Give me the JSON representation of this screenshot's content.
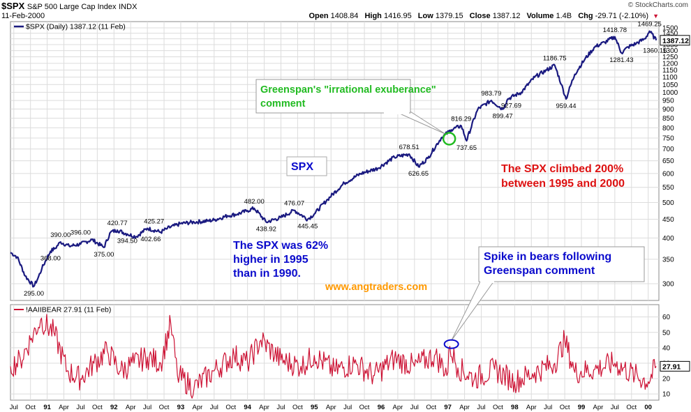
{
  "header": {
    "symbol": "$SPX",
    "name": "S&P 500 Large Cap Index",
    "exchange": "INDX",
    "date": "11-Feb-2000",
    "brand": "© StockCharts.com",
    "ohlc": [
      {
        "label": "Open",
        "value": "1408.84"
      },
      {
        "label": "High",
        "value": "1416.95"
      },
      {
        "label": "Low",
        "value": "1379.15"
      },
      {
        "label": "Close",
        "value": "1387.12"
      },
      {
        "label": "Volume",
        "value": "1.4B"
      },
      {
        "label": "Chg",
        "value": "-29.71 (-2.10%)"
      }
    ],
    "chg_arrow": "▼"
  },
  "colors": {
    "price_line": "#1a1a80",
    "bear_line": "#cc1133",
    "green": "#22bb22",
    "red": "#dd1111",
    "blue": "#0a0acc",
    "orange": "#ff9900",
    "grid": "#dcdcdc"
  },
  "chart_data": [
    {
      "type": "line",
      "legend": "$SPX (Daily) 1387.12 (11 Feb)",
      "last_value_label": "1387.12",
      "scale": "log",
      "ylim": [
        270,
        1560
      ],
      "yticks": [
        300,
        350,
        400,
        450,
        500,
        550,
        600,
        650,
        700,
        750,
        800,
        850,
        900,
        950,
        1000,
        1050,
        1100,
        1150,
        1200,
        1250,
        1300,
        1350,
        1400,
        1450,
        1500
      ],
      "xlim": [
        1990.45,
        2000.16
      ],
      "x": [
        1990.45,
        1990.55,
        1990.67,
        1990.8,
        1990.86,
        1990.92,
        1991.05,
        1991.12,
        1991.2,
        1991.33,
        1991.5,
        1991.67,
        1991.85,
        1991.95,
        1992.05,
        1992.2,
        1992.33,
        1992.5,
        1992.7,
        1992.8,
        1993.0,
        1993.2,
        1993.4,
        1993.5,
        1993.7,
        1993.85,
        1994.0,
        1994.1,
        1994.28,
        1994.5,
        1994.7,
        1994.9,
        1995.0,
        1995.2,
        1995.45,
        1995.7,
        1995.95,
        1996.2,
        1996.42,
        1996.56,
        1996.7,
        1996.9,
        1997.05,
        1997.2,
        1997.28,
        1997.45,
        1997.65,
        1997.82,
        1997.9,
        1998.1,
        1998.3,
        1998.48,
        1998.6,
        1998.7,
        1998.77,
        1998.9,
        1999.05,
        1999.2,
        1999.35,
        1999.5,
        1999.6,
        1999.7,
        1999.82,
        1999.95,
        2000.02,
        2000.12
      ],
      "values": [
        365,
        355,
        315,
        295,
        310,
        330,
        368,
        375,
        390,
        380,
        385,
        396,
        377,
        415,
        420,
        410,
        403,
        425,
        415,
        425,
        438,
        442,
        445,
        448,
        460,
        465,
        475,
        482,
        442,
        455,
        476,
        450,
        465,
        510,
        565,
        600,
        620,
        665,
        678,
        626,
        660,
        750,
        790,
        810,
        737,
        900,
        950,
        899,
        960,
        1000,
        1100,
        1150,
        1186,
        1050,
        959,
        1120,
        1230,
        1330,
        1370,
        1418,
        1281,
        1330,
        1360,
        1400,
        1469,
        1387
      ],
      "annotations": [
        {
          "x": 1990.8,
          "y": 295,
          "text": "295.00",
          "pos": "below"
        },
        {
          "x": 1991.05,
          "y": 368,
          "text": "368.00",
          "pos": "below"
        },
        {
          "x": 1991.2,
          "y": 390,
          "text": "390.00",
          "pos": "above"
        },
        {
          "x": 1991.5,
          "y": 396,
          "text": "396.00",
          "pos": "above"
        },
        {
          "x": 1991.85,
          "y": 377,
          "text": "375.00",
          "pos": "below"
        },
        {
          "x": 1992.05,
          "y": 420,
          "text": "420.77",
          "pos": "above"
        },
        {
          "x": 1992.2,
          "y": 410,
          "text": "394.50",
          "pos": "below"
        },
        {
          "x": 1992.6,
          "y": 425,
          "text": "425.27",
          "pos": "above"
        },
        {
          "x": 1992.55,
          "y": 415,
          "text": "402.66",
          "pos": "below"
        },
        {
          "x": 1994.1,
          "y": 482,
          "text": "482.00",
          "pos": "above"
        },
        {
          "x": 1994.28,
          "y": 442,
          "text": "438.92",
          "pos": "below"
        },
        {
          "x": 1994.7,
          "y": 476,
          "text": "476.07",
          "pos": "above"
        },
        {
          "x": 1994.9,
          "y": 450,
          "text": "445.45",
          "pos": "below"
        },
        {
          "x": 1996.42,
          "y": 678,
          "text": "678.51",
          "pos": "above"
        },
        {
          "x": 1996.56,
          "y": 626,
          "text": "626.65",
          "pos": "below"
        },
        {
          "x": 1997.2,
          "y": 810,
          "text": "816.29",
          "pos": "above"
        },
        {
          "x": 1997.28,
          "y": 737,
          "text": "737.65",
          "pos": "below"
        },
        {
          "x": 1997.65,
          "y": 950,
          "text": "983.79",
          "pos": "above"
        },
        {
          "x": 1997.82,
          "y": 899,
          "text": "899.47",
          "pos": "below"
        },
        {
          "x": 1997.95,
          "y": 960,
          "text": "927.69",
          "pos": "below"
        },
        {
          "x": 1998.6,
          "y": 1186,
          "text": "1186.75",
          "pos": "above"
        },
        {
          "x": 1998.77,
          "y": 959,
          "text": "959.44",
          "pos": "below"
        },
        {
          "x": 1999.5,
          "y": 1418,
          "text": "1418.78",
          "pos": "above"
        },
        {
          "x": 1999.6,
          "y": 1281,
          "text": "1281.43",
          "pos": "below"
        },
        {
          "x": 2000.02,
          "y": 1469,
          "text": "1469.25",
          "pos": "above"
        },
        {
          "x": 2000.1,
          "y": 1360,
          "text": "1360.16",
          "pos": "below"
        }
      ]
    },
    {
      "type": "line",
      "legend": "!AAIIBEAR 27.91 (11 Feb)",
      "last_value_label": "27.91",
      "ylim": [
        6,
        68
      ],
      "yticks": [
        10,
        20,
        30,
        40,
        50,
        60
      ],
      "xlim": [
        1990.45,
        2000.16
      ],
      "x": [
        1990.45,
        1990.6,
        1990.75,
        1990.9,
        1991.1,
        1991.3,
        1991.5,
        1991.7,
        1991.9,
        1992.1,
        1992.3,
        1992.5,
        1992.7,
        1992.85,
        1992.95,
        1993.2,
        1993.5,
        1993.8,
        1994.0,
        1994.2,
        1994.5,
        1994.8,
        1995.0,
        1995.3,
        1995.6,
        1995.9,
        1996.2,
        1996.5,
        1996.8,
        1997.0,
        1997.03,
        1997.15,
        1997.4,
        1997.7,
        1998.0,
        1998.3,
        1998.6,
        1998.75,
        1998.9,
        1999.2,
        1999.5,
        1999.8,
        2000.0,
        2000.12
      ],
      "values": [
        28,
        32,
        45,
        58,
        50,
        25,
        20,
        30,
        38,
        25,
        30,
        34,
        30,
        56,
        22,
        14,
        25,
        35,
        30,
        45,
        32,
        28,
        35,
        25,
        30,
        22,
        33,
        28,
        35,
        24,
        41,
        27,
        20,
        26,
        18,
        24,
        30,
        45,
        24,
        26,
        30,
        22,
        18,
        28
      ]
    }
  ],
  "x_axis": {
    "ticks": [
      {
        "x": 1990.5,
        "label": "Jul"
      },
      {
        "x": 1990.75,
        "label": "Oct"
      },
      {
        "x": 1991.0,
        "label": "91",
        "bold": true
      },
      {
        "x": 1991.25,
        "label": "Apr"
      },
      {
        "x": 1991.5,
        "label": "Jul"
      },
      {
        "x": 1991.75,
        "label": "Oct"
      },
      {
        "x": 1992.0,
        "label": "92",
        "bold": true
      },
      {
        "x": 1992.25,
        "label": "Apr"
      },
      {
        "x": 1992.5,
        "label": "Jul"
      },
      {
        "x": 1992.75,
        "label": "Oct"
      },
      {
        "x": 1993.0,
        "label": "93",
        "bold": true
      },
      {
        "x": 1993.25,
        "label": "Apr"
      },
      {
        "x": 1993.5,
        "label": "Jul"
      },
      {
        "x": 1993.75,
        "label": "Oct"
      },
      {
        "x": 1994.0,
        "label": "94",
        "bold": true
      },
      {
        "x": 1994.25,
        "label": "Apr"
      },
      {
        "x": 1994.5,
        "label": "Jul"
      },
      {
        "x": 1994.75,
        "label": "Oct"
      },
      {
        "x": 1995.0,
        "label": "95",
        "bold": true
      },
      {
        "x": 1995.25,
        "label": "Apr"
      },
      {
        "x": 1995.5,
        "label": "Jul"
      },
      {
        "x": 1995.75,
        "label": "Oct"
      },
      {
        "x": 1996.0,
        "label": "96",
        "bold": true
      },
      {
        "x": 1996.25,
        "label": "Apr"
      },
      {
        "x": 1996.5,
        "label": "Jul"
      },
      {
        "x": 1996.75,
        "label": "Oct"
      },
      {
        "x": 1997.0,
        "label": "97",
        "bold": true
      },
      {
        "x": 1997.25,
        "label": "Apr"
      },
      {
        "x": 1997.5,
        "label": "Jul"
      },
      {
        "x": 1997.75,
        "label": "Oct"
      },
      {
        "x": 1998.0,
        "label": "98",
        "bold": true
      },
      {
        "x": 1998.25,
        "label": "Apr"
      },
      {
        "x": 1998.5,
        "label": "Jul"
      },
      {
        "x": 1998.75,
        "label": "Oct"
      },
      {
        "x": 1999.0,
        "label": "99",
        "bold": true
      },
      {
        "x": 1999.25,
        "label": "Apr"
      },
      {
        "x": 1999.5,
        "label": "Jul"
      },
      {
        "x": 1999.75,
        "label": "Oct"
      },
      {
        "x": 2000.0,
        "label": "00",
        "bold": true
      }
    ]
  },
  "callouts": {
    "greenspan_comment": "Greenspan's \"irrational exuberance\" comment",
    "spike_in_bears": "Spike in bears following Greenspan comment"
  },
  "text_annotations": {
    "spx_label": "SPX",
    "spx_62_percent": "The SPX was 62% higher in 1995 than in 1990.",
    "spx_200_percent": "The SPX climbed 200% between 1995 and 2000",
    "website": "www.angtraders.com"
  }
}
